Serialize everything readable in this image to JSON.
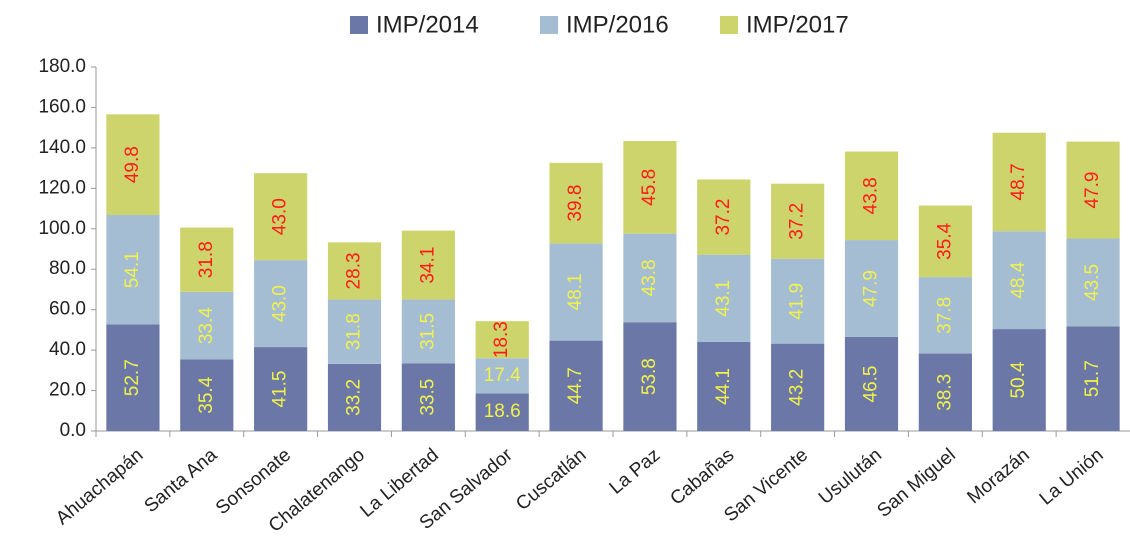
{
  "chart_data": {
    "type": "stacked_bar",
    "categories": [
      "Ahuachapán",
      "Santa Ana",
      "Sonsonate",
      "Chalatenango",
      "La Libertad",
      "San Salvador",
      "Cuscatlán",
      "La Paz",
      "Cabañas",
      "San Vicente",
      "Usulután",
      "San Miguel",
      "Morazán",
      "La Unión"
    ],
    "series": [
      {
        "name": "IMP/2014",
        "color": "#6b77a7",
        "label_color": "#f2f24a",
        "values": [
          52.7,
          35.4,
          41.5,
          33.2,
          33.5,
          18.6,
          44.7,
          53.8,
          44.1,
          43.2,
          46.5,
          38.3,
          50.4,
          51.7
        ]
      },
      {
        "name": "IMP/2016",
        "color": "#a5bdd3",
        "label_color": "#f2f24a",
        "values": [
          54.1,
          33.4,
          43.0,
          31.8,
          31.5,
          17.4,
          48.1,
          43.8,
          43.1,
          41.9,
          47.9,
          37.8,
          48.4,
          43.5
        ],
        "value_labels": [
          "54.1",
          "33.4",
          "43.0",
          "31.8",
          "31.5",
          "17.4",
          "48.1",
          "43.8",
          "43.1",
          "41.9",
          "47.9",
          "37.8",
          "48.4",
          "43.5"
        ]
      },
      {
        "name": "IMP/2017",
        "color": "#cdd46c",
        "label_color": "#ff1a1a",
        "values": [
          49.8,
          31.8,
          43.0,
          28.3,
          34.1,
          18.3,
          39.8,
          45.8,
          37.2,
          37.2,
          43.8,
          35.4,
          48.7,
          47.9
        ],
        "value_labels": [
          "49.8",
          "31.8",
          "43.0",
          "28.3",
          "34.1",
          "18.3",
          "39.8",
          "45.8",
          "37.2",
          "37.2",
          "43.8",
          "35.4",
          "48.7",
          "47.9"
        ]
      }
    ],
    "ylim": [
      0,
      180
    ],
    "yticks": [
      {
        "value": 0,
        "label": "0.0"
      },
      {
        "value": 20,
        "label": "20.0"
      },
      {
        "value": 40,
        "label": "40.0"
      },
      {
        "value": 60,
        "label": "60.0"
      },
      {
        "value": 80,
        "label": "80.0"
      },
      {
        "value": 100,
        "label": "100.0"
      },
      {
        "value": 120,
        "label": "120.0"
      },
      {
        "value": 140,
        "label": "140.0"
      },
      {
        "value": 160,
        "label": "160.0"
      },
      {
        "value": 180,
        "label": "180.0"
      }
    ],
    "legend": "top"
  }
}
